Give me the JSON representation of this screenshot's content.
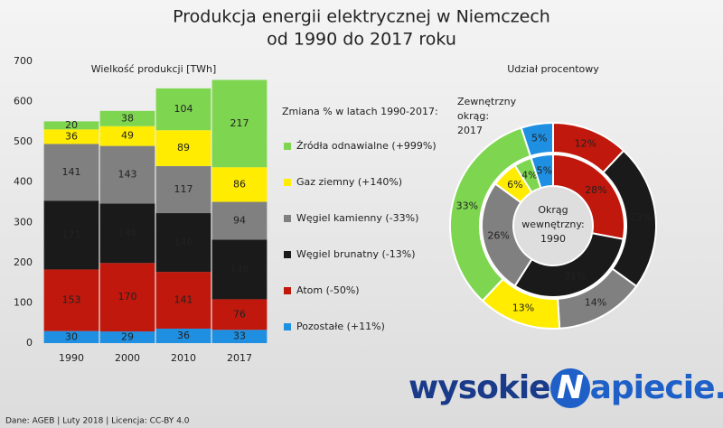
{
  "title": [
    "Produkcja energii elektrycznej w Niemczech",
    "od 1990 do 2017 roku"
  ],
  "source": "Dane: AGEB  |  Luty 2018  |  Licencja: CC-BY 4.0",
  "logo": [
    "wysokie",
    "N",
    "apiecie.pl"
  ],
  "chart_data": [
    {
      "type": "stacked-bar",
      "title": "Wielkość produkcji [TWh]",
      "legend_title": "Zmiana % w latach 1990-2017:",
      "categories": [
        "1990",
        "2000",
        "2010",
        "2017"
      ],
      "ylim": [
        0,
        700
      ],
      "yticks": [
        0,
        100,
        200,
        300,
        400,
        500,
        600,
        700
      ],
      "grid": false,
      "legend": "right",
      "series": [
        {
          "name": "Pozostałe (+11%)",
          "color": "#1e8fe1",
          "values": [
            30,
            29,
            36,
            33
          ]
        },
        {
          "name": "Atom (-50%)",
          "color": "#c0180c",
          "values": [
            153,
            170,
            141,
            76
          ]
        },
        {
          "name": "Węgiel brunatny (-13%)",
          "color": "#1a1a1a",
          "values": [
            171,
            148,
            146,
            148
          ]
        },
        {
          "name": "Węgiel kamienny (-33%)",
          "color": "#808080",
          "values": [
            141,
            143,
            117,
            94
          ]
        },
        {
          "name": "Gaz ziemny (+140%)",
          "color": "#ffec00",
          "values": [
            36,
            49,
            89,
            86
          ]
        },
        {
          "name": "Źródła odnawialne (+999%)",
          "color": "#7ed650",
          "values": [
            20,
            38,
            104,
            217
          ]
        }
      ]
    },
    {
      "type": "donut",
      "title": "Udział procentowy",
      "colors": [
        "#c0180c",
        "#1a1a1a",
        "#808080",
        "#ffec00",
        "#7ed650",
        "#1e8fe1"
      ],
      "rings": [
        {
          "label": [
            "Okrąg",
            "wewnętrzny:",
            "1990"
          ],
          "values": [
            28,
            31,
            26,
            6,
            4,
            5
          ],
          "value_labels": [
            "28%",
            "31%",
            "26%",
            "6%",
            "4%",
            "5%"
          ]
        },
        {
          "label": [
            "Zewnętrzny",
            "okrąg:",
            "2017"
          ],
          "values": [
            12,
            23,
            14,
            13,
            33,
            5
          ],
          "value_labels": [
            "12%",
            "23%",
            "14%",
            "13%",
            "33%",
            "5%"
          ]
        }
      ]
    }
  ]
}
